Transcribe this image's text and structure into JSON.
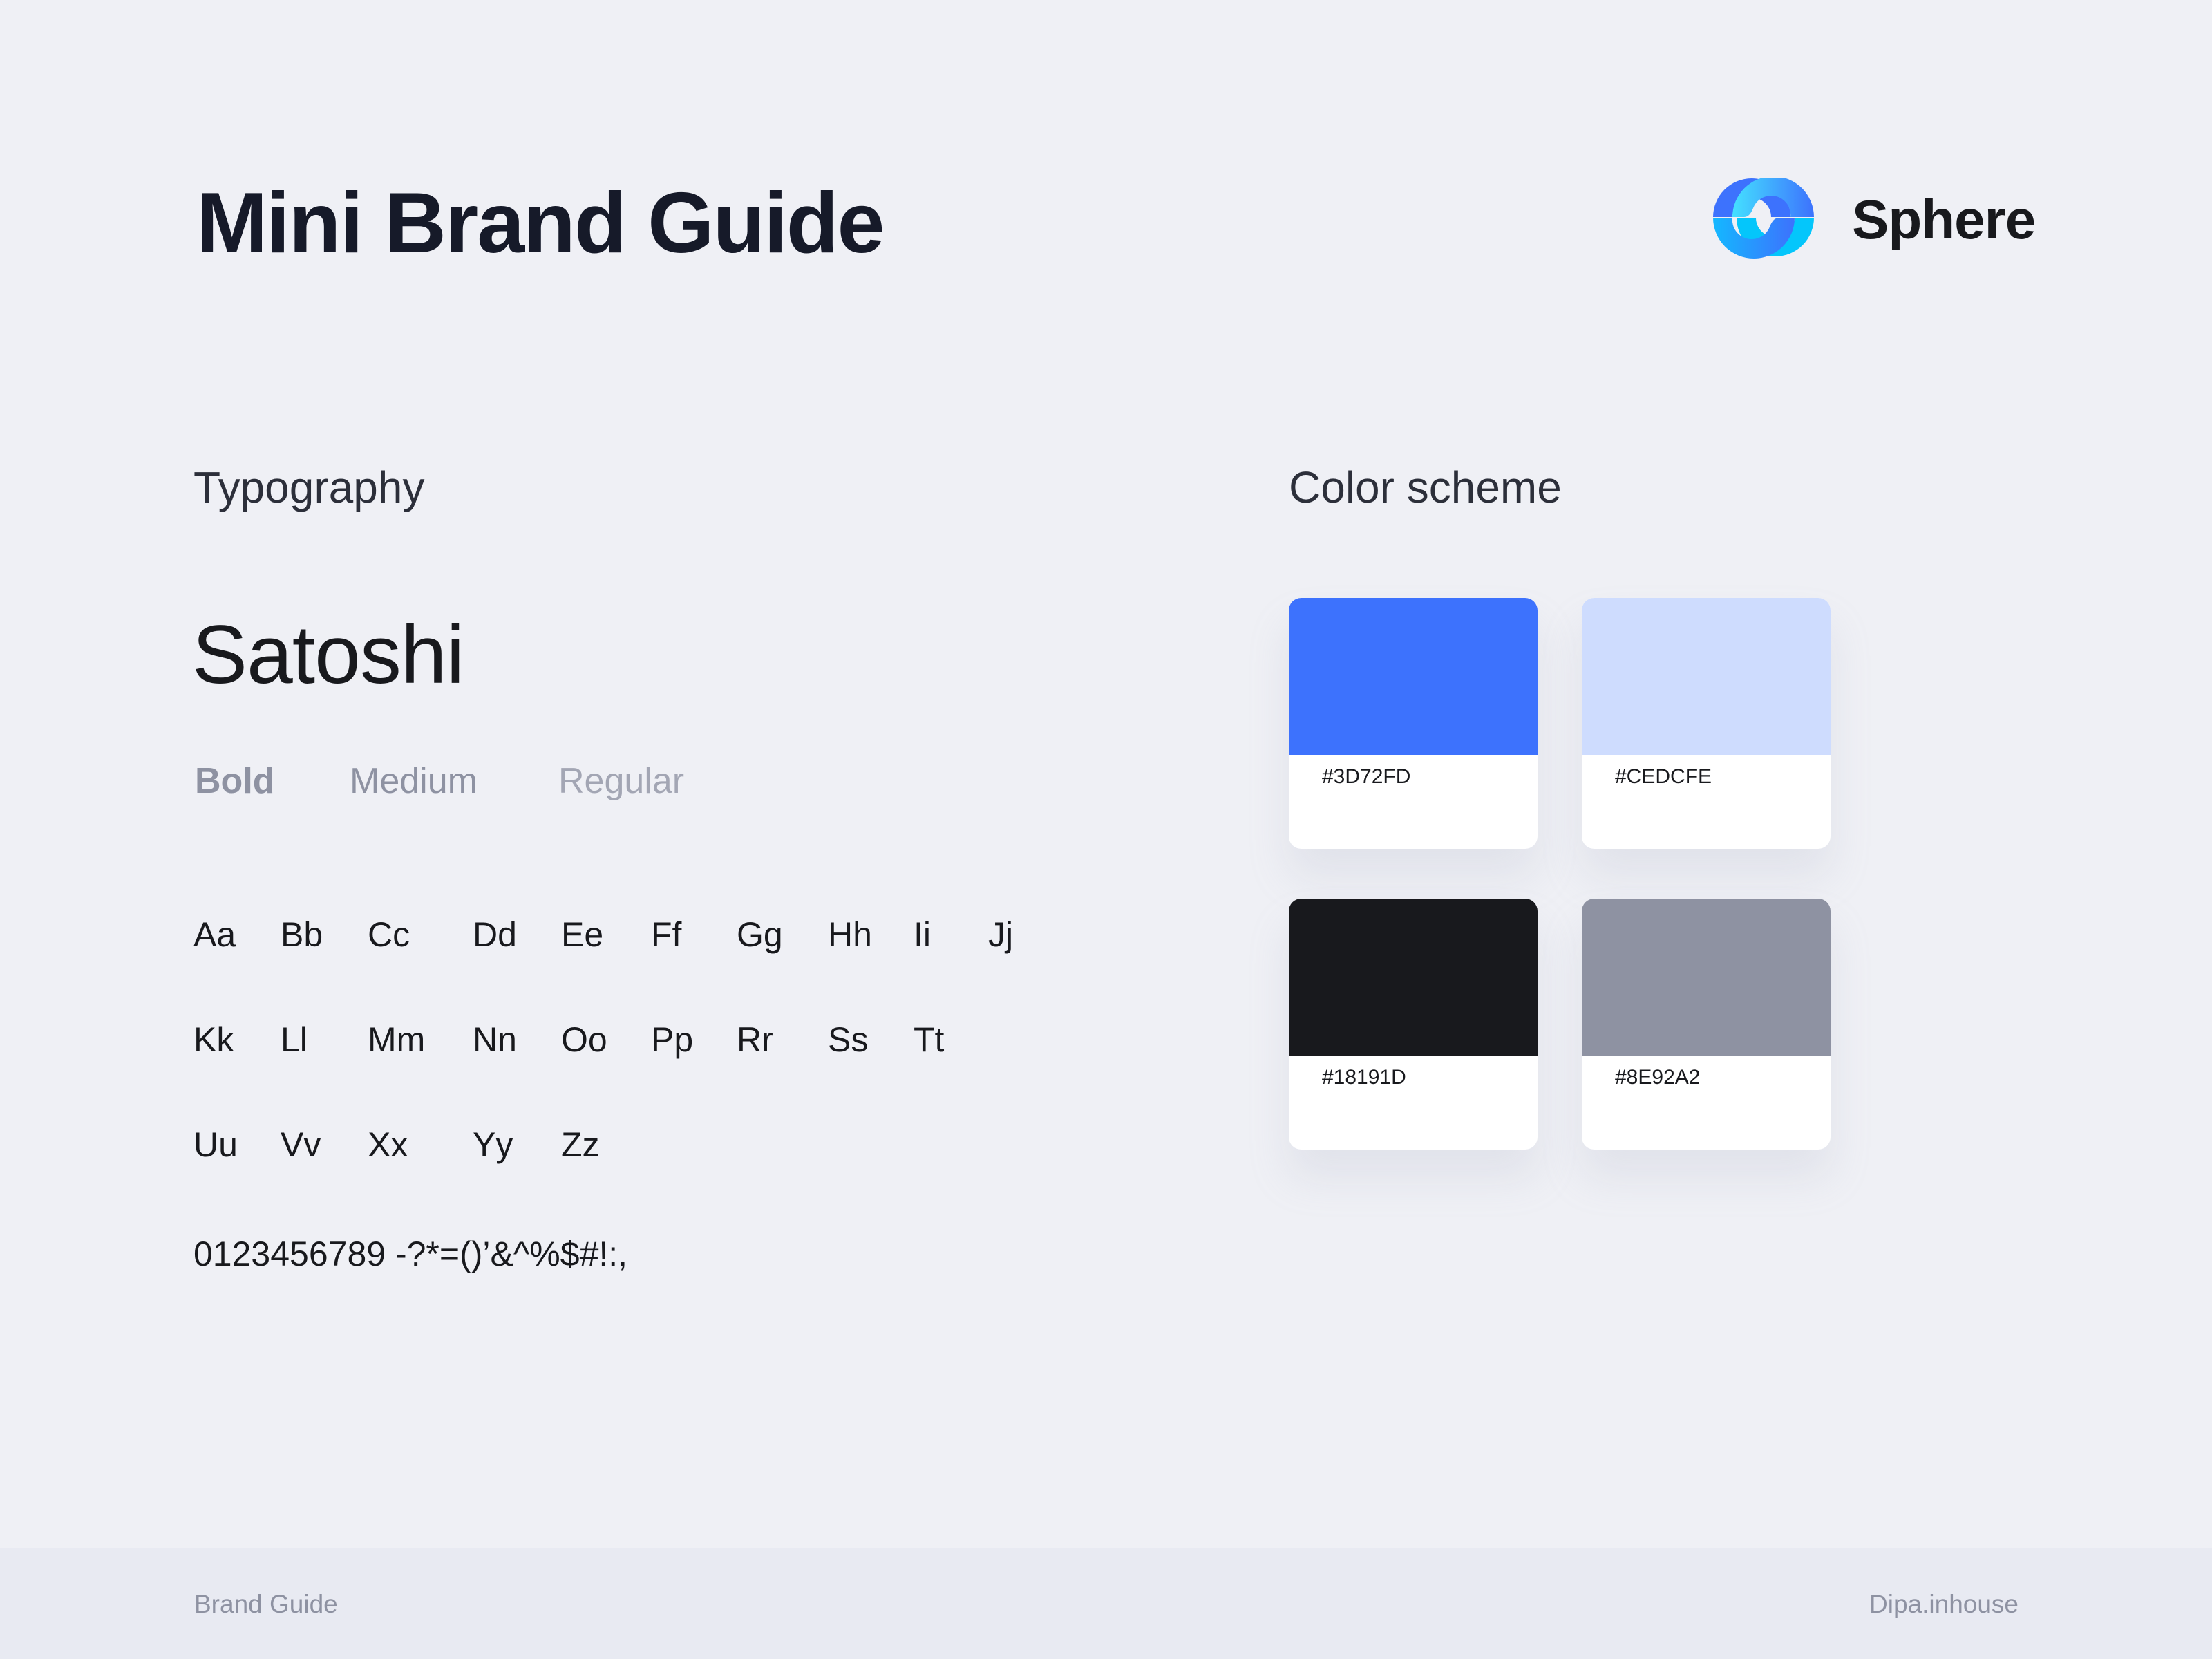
{
  "header": {
    "title": "Mini Brand Guide",
    "brand_name": "Sphere",
    "logo_icon": "sphere-logo-icon"
  },
  "typography": {
    "heading": "Typography",
    "font_name": "Satoshi",
    "weights": [
      "Bold",
      "Medium",
      "Regular"
    ],
    "glyph_rows": [
      [
        "Aa",
        "Bb",
        "Cc",
        "Dd",
        "Ee",
        "Ff",
        "Gg",
        "Hh",
        "Ii",
        "Jj"
      ],
      [
        "Kk",
        "Ll",
        "Mm",
        "Nn",
        "Oo",
        "Pp",
        "Rr",
        "Ss",
        "Tt"
      ],
      [
        "Uu",
        "Vv",
        "Xx",
        "Yy",
        "Zz"
      ]
    ],
    "digits": "0123456789 -?*=()’&^%$#!:,"
  },
  "color_scheme": {
    "heading": "Color scheme",
    "swatches": [
      {
        "label": "#3D72FD",
        "color": "#3D72FD"
      },
      {
        "label": "#CEDCFE",
        "color": "#CEDCFE"
      },
      {
        "label": "#18191D",
        "color": "#18191D"
      },
      {
        "label": "#8E92A2",
        "color": "#8E92A2"
      }
    ]
  },
  "footer": {
    "left": "Brand Guide",
    "right": "Dipa.inhouse"
  }
}
